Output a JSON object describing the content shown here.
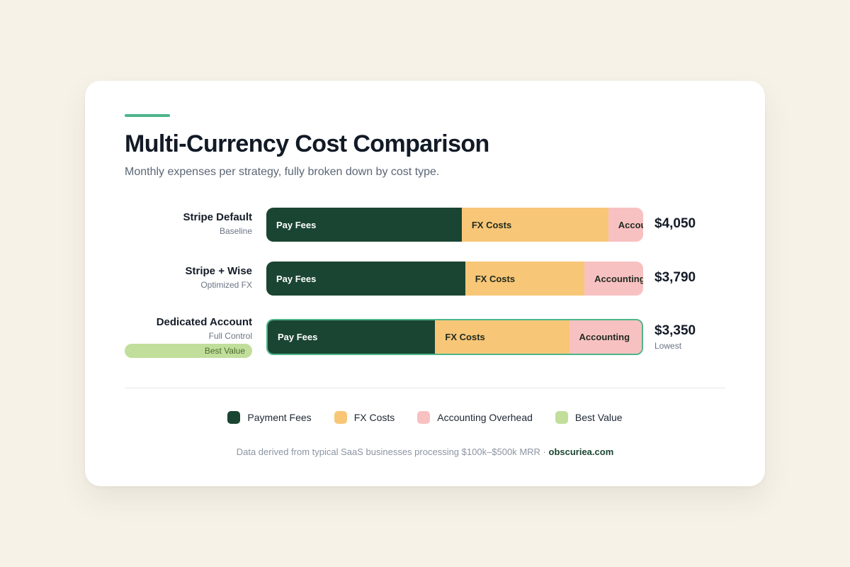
{
  "header": {
    "title": "Multi-Currency Cost Comparison",
    "subtitle": "Monthly expenses per strategy, fully broken down by cost type."
  },
  "colors": {
    "accent": "#4cb58a",
    "payment_fees": "#1a4532",
    "fx_costs": "#f8c677",
    "accounting_overhead": "#f8c1c1",
    "best_value": "#c1de9b",
    "background": "#f6f2e8"
  },
  "chart_data": {
    "type": "bar",
    "orientation": "horizontal",
    "stacked": true,
    "title": "Multi-Currency Cost Comparison",
    "subtitle": "Monthly expenses per strategy, fully broken down by cost type.",
    "categories": [
      "Stripe Default",
      "Stripe + Wise",
      "Dedicated Account"
    ],
    "category_notes": [
      "Baseline",
      "Optimized FX",
      "Full Control"
    ],
    "segment_labels": [
      "Pay Fees",
      "FX Costs",
      "Accounting"
    ],
    "series": [
      {
        "name": "Payment Fees",
        "values": [
          2100,
          2000,
          1500
        ]
      },
      {
        "name": "FX Costs",
        "values": [
          1575,
          1200,
          1200
        ]
      },
      {
        "name": "Accounting Overhead",
        "values": [
          375,
          590,
          650
        ]
      }
    ],
    "totals": [
      "$4,050",
      "$3,790",
      "$3,350"
    ],
    "total_notes": [
      "",
      "",
      "Lowest"
    ],
    "highlight": {
      "category": "Dedicated Account",
      "badge": "Best Value"
    },
    "legend": [
      "Payment Fees",
      "FX Costs",
      "Accounting Overhead",
      "Best Value"
    ],
    "legend_placement": "bottom-center",
    "grid": false
  },
  "footer": {
    "text": "Data derived from typical SaaS businesses processing $100k–$500k MRR · ",
    "brand": "obscuriea.com"
  }
}
